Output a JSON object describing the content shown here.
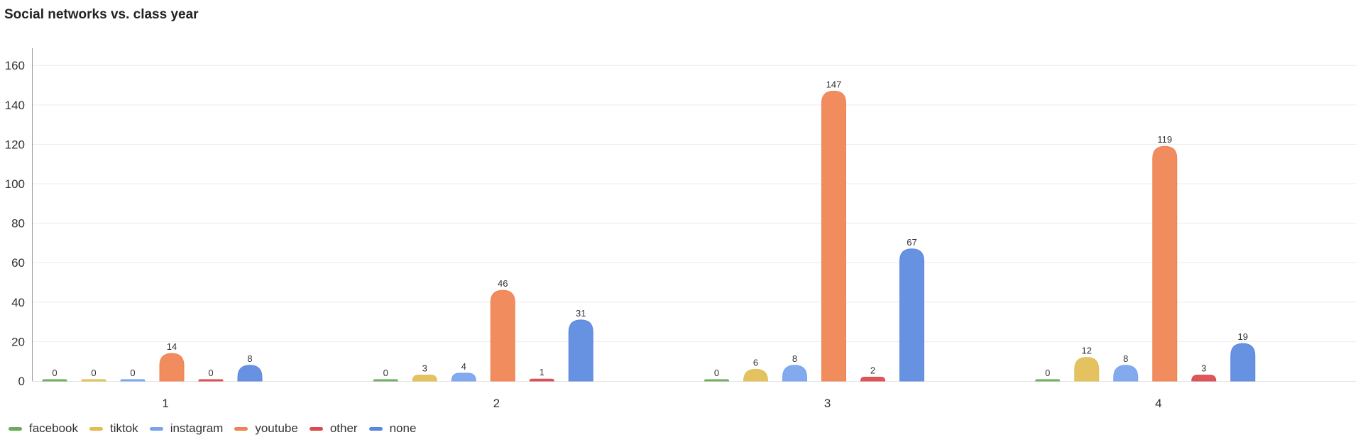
{
  "title": "Social networks vs. class year",
  "chart_data": {
    "type": "bar",
    "title": "Social networks vs. class year",
    "xlabel": "",
    "ylabel": "",
    "categories": [
      "1",
      "2",
      "3",
      "4"
    ],
    "ylim": [
      0,
      168
    ],
    "yticks": [
      0,
      20,
      40,
      60,
      80,
      100,
      120,
      140,
      160
    ],
    "grid": true,
    "legend_position": "bottom-left",
    "data_labels": true,
    "series": [
      {
        "name": "facebook",
        "color": "#6aab5b",
        "values": [
          0,
          0,
          0,
          0
        ]
      },
      {
        "name": "tiktok",
        "color": "#e2bd52",
        "values": [
          0,
          3,
          6,
          12
        ]
      },
      {
        "name": "instagram",
        "color": "#78a3ee",
        "values": [
          0,
          4,
          8,
          8
        ]
      },
      {
        "name": "youtube",
        "color": "#ef8250",
        "values": [
          14,
          46,
          147,
          119
        ]
      },
      {
        "name": "other",
        "color": "#d9494e",
        "values": [
          0,
          1,
          2,
          3
        ]
      },
      {
        "name": "none",
        "color": "#5a88de",
        "values": [
          8,
          31,
          67,
          19
        ]
      }
    ]
  }
}
